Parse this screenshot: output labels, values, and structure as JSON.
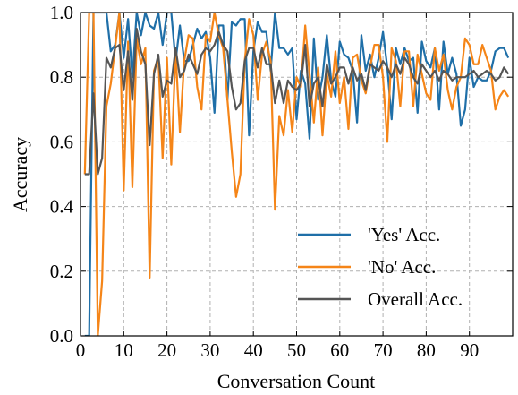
{
  "chart_data": {
    "type": "line",
    "title": "",
    "xlabel": "Conversation Count",
    "ylabel": "Accuracy",
    "xlim": [
      0,
      100
    ],
    "ylim": [
      0.0,
      1.0
    ],
    "xticks": [
      0,
      10,
      20,
      30,
      40,
      50,
      60,
      70,
      80,
      90
    ],
    "yticks": [
      0.0,
      0.2,
      0.4,
      0.6,
      0.8,
      1.0
    ],
    "ytick_labels": [
      "0.0",
      "0.2",
      "0.4",
      "0.6",
      "0.8",
      "1.0"
    ],
    "grid": true,
    "grid_style": "dashed",
    "legend_position": "lower-right",
    "x": [
      1,
      2,
      3,
      4,
      5,
      6,
      7,
      8,
      9,
      10,
      11,
      12,
      13,
      14,
      15,
      16,
      17,
      18,
      19,
      20,
      21,
      22,
      23,
      24,
      25,
      26,
      27,
      28,
      29,
      30,
      31,
      32,
      33,
      34,
      35,
      36,
      37,
      38,
      39,
      40,
      41,
      42,
      43,
      44,
      45,
      46,
      47,
      48,
      49,
      50,
      51,
      52,
      53,
      54,
      55,
      56,
      57,
      58,
      59,
      60,
      61,
      62,
      63,
      64,
      65,
      66,
      67,
      68,
      69,
      70,
      71,
      72,
      73,
      74,
      75,
      76,
      77,
      78,
      79,
      80,
      81,
      82,
      83,
      84,
      85,
      86,
      87,
      88,
      89,
      90,
      91,
      92,
      93,
      94,
      95,
      96,
      97,
      98,
      99
    ],
    "series": [
      {
        "name": "'Yes' Acc.",
        "color": "#1f6fa8",
        "values": [
          0.0,
          0.0,
          1.0,
          1.0,
          1.0,
          1.0,
          0.88,
          0.9,
          1.0,
          0.86,
          0.98,
          0.8,
          1.0,
          0.93,
          1.0,
          0.96,
          0.95,
          1.0,
          0.9,
          1.0,
          1.0,
          0.85,
          0.96,
          0.85,
          0.85,
          0.9,
          0.95,
          0.92,
          0.94,
          0.86,
          0.69,
          0.96,
          0.96,
          0.73,
          0.97,
          0.96,
          0.98,
          0.98,
          0.62,
          0.88,
          0.97,
          0.94,
          0.94,
          0.82,
          1.0,
          0.89,
          0.89,
          0.87,
          0.89,
          0.67,
          0.82,
          0.78,
          0.61,
          0.92,
          0.73,
          0.8,
          0.93,
          0.79,
          0.74,
          0.91,
          0.87,
          0.86,
          0.82,
          0.66,
          0.93,
          0.82,
          0.87,
          0.8,
          0.86,
          0.94,
          0.83,
          0.67,
          0.89,
          0.84,
          0.89,
          0.85,
          0.86,
          0.69,
          0.91,
          0.85,
          0.83,
          0.89,
          0.7,
          0.91,
          0.81,
          0.86,
          0.81,
          0.65,
          0.7,
          0.86,
          0.77,
          0.8,
          0.79,
          0.79,
          0.82,
          0.88,
          0.89,
          0.89,
          0.86
        ]
      },
      {
        "name": "'No' Acc.",
        "color": "#f58518",
        "values": [
          0.5,
          1.0,
          1.0,
          0.0,
          0.17,
          0.71,
          0.78,
          0.89,
          1.0,
          0.45,
          0.91,
          0.46,
          0.92,
          0.84,
          0.89,
          0.18,
          0.82,
          0.86,
          0.55,
          0.86,
          0.53,
          0.88,
          0.63,
          0.85,
          0.93,
          0.92,
          0.77,
          0.7,
          0.93,
          0.91,
          1.0,
          0.93,
          0.89,
          0.73,
          0.57,
          0.43,
          0.5,
          0.85,
          0.98,
          0.93,
          0.73,
          0.87,
          0.91,
          0.85,
          0.39,
          0.68,
          0.62,
          0.76,
          0.63,
          0.8,
          0.77,
          0.96,
          0.81,
          0.66,
          0.83,
          0.62,
          0.81,
          0.74,
          0.88,
          0.72,
          0.8,
          0.64,
          0.86,
          0.87,
          0.79,
          0.75,
          0.83,
          0.9,
          0.9,
          0.8,
          0.6,
          0.89,
          0.85,
          0.71,
          0.88,
          0.88,
          0.71,
          0.87,
          0.81,
          0.75,
          0.73,
          0.89,
          0.82,
          0.87,
          0.76,
          0.7,
          0.77,
          0.8,
          0.92,
          0.9,
          0.84,
          0.84,
          0.9,
          0.86,
          0.82,
          0.7,
          0.74,
          0.76,
          0.74
        ]
      },
      {
        "name": "Overall Acc.",
        "color": "#555555",
        "values": [
          0.5,
          0.5,
          0.75,
          0.5,
          0.55,
          0.86,
          0.83,
          0.89,
          0.9,
          0.76,
          0.88,
          0.73,
          0.95,
          0.88,
          0.84,
          0.59,
          0.81,
          0.87,
          0.74,
          0.79,
          0.78,
          0.89,
          0.8,
          0.82,
          0.87,
          0.84,
          0.81,
          0.87,
          0.89,
          0.88,
          0.9,
          0.94,
          0.9,
          0.88,
          0.77,
          0.7,
          0.72,
          0.85,
          0.89,
          0.89,
          0.83,
          0.89,
          0.84,
          0.84,
          0.72,
          0.79,
          0.72,
          0.79,
          0.77,
          0.76,
          0.78,
          0.9,
          0.71,
          0.78,
          0.8,
          0.71,
          0.84,
          0.78,
          0.8,
          0.83,
          0.83,
          0.78,
          0.83,
          0.79,
          0.81,
          0.76,
          0.84,
          0.83,
          0.82,
          0.85,
          0.83,
          0.8,
          0.84,
          0.81,
          0.86,
          0.84,
          0.8,
          0.78,
          0.84,
          0.82,
          0.8,
          0.82,
          0.79,
          0.82,
          0.81,
          0.79,
          0.8,
          0.8,
          0.8,
          0.81,
          0.82,
          0.8,
          0.81,
          0.82,
          0.81,
          0.79,
          0.8,
          0.83,
          0.81
        ]
      }
    ]
  }
}
